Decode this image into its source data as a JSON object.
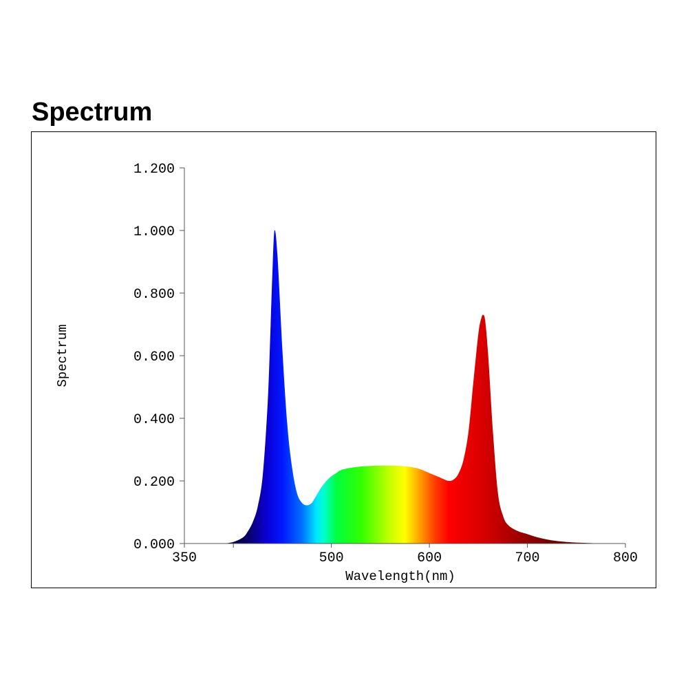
{
  "header": {
    "title": "Spectrum"
  },
  "chart_data": {
    "type": "area",
    "title": "Spectrum",
    "xlabel": "Wavelength(nm)",
    "ylabel": "Spectrum",
    "xlim": [
      350,
      800
    ],
    "ylim": [
      0,
      1.2
    ],
    "x_ticks": [
      350,
      500,
      600,
      700,
      800
    ],
    "x_tick_labels": [
      "350",
      "500",
      "600",
      "700",
      "800"
    ],
    "y_ticks": [
      0,
      0.2,
      0.4,
      0.6,
      0.8,
      1.0,
      1.2
    ],
    "y_tick_labels": [
      "0.000",
      "0.200",
      "0.400",
      "0.600",
      "0.800",
      "1.000",
      "1.200"
    ],
    "grid": false,
    "fill": "visible-spectrum-gradient",
    "series": [
      {
        "x": [
          390,
          400,
          410,
          415,
          420,
          425,
          430,
          435,
          438,
          440,
          442,
          445,
          450,
          455,
          460,
          465,
          470,
          475,
          480,
          485,
          490,
          495,
          500,
          505,
          510,
          520,
          530,
          540,
          550,
          560,
          570,
          580,
          590,
          600,
          610,
          615,
          620,
          625,
          630,
          635,
          640,
          645,
          650,
          653,
          655,
          657,
          660,
          665,
          670,
          675,
          680,
          690,
          700,
          710,
          720,
          730,
          740,
          750,
          760,
          770,
          780,
          790
        ],
        "y": [
          0.0,
          0.005,
          0.02,
          0.04,
          0.07,
          0.12,
          0.22,
          0.45,
          0.7,
          0.88,
          1.0,
          0.92,
          0.62,
          0.38,
          0.24,
          0.16,
          0.13,
          0.122,
          0.13,
          0.155,
          0.18,
          0.2,
          0.215,
          0.225,
          0.235,
          0.242,
          0.246,
          0.248,
          0.249,
          0.249,
          0.248,
          0.245,
          0.238,
          0.225,
          0.212,
          0.205,
          0.2,
          0.205,
          0.225,
          0.27,
          0.36,
          0.52,
          0.67,
          0.72,
          0.73,
          0.71,
          0.6,
          0.35,
          0.16,
          0.09,
          0.06,
          0.04,
          0.03,
          0.02,
          0.013,
          0.008,
          0.005,
          0.003,
          0.002,
          0.001,
          0.001,
          0.0
        ]
      }
    ]
  }
}
